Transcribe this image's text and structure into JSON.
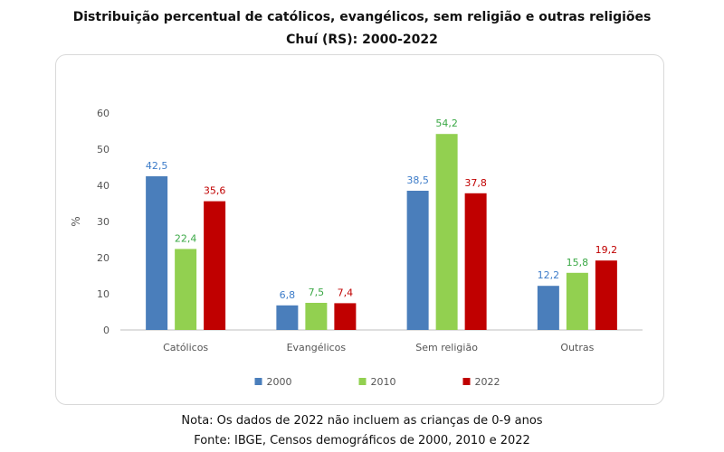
{
  "title_line1": "Distribuição percentual de católicos, evangélicos, sem religião e outras religiões",
  "title_line2": "Chuí (RS): 2000-2022",
  "note": "Nota: Os dados de 2022 não incluem as crianças de 0-9 anos",
  "source": "Fonte: IBGE, Censos demográficos de 2000, 2010 e 2022",
  "chart_data": {
    "type": "bar",
    "title": "Distribuição percentual de católicos, evangélicos, sem religião e outras religiões",
    "subtitle": "Chuí (RS): 2000-2022",
    "ylabel": "%",
    "xlabel": "",
    "ylim": [
      0,
      60
    ],
    "yticks": [
      0,
      10,
      20,
      30,
      40,
      50,
      60
    ],
    "grid": false,
    "legend_position": "bottom",
    "categories": [
      "Católicos",
      "Evangélicos",
      "Sem religião",
      "Outras"
    ],
    "series": [
      {
        "name": "2000",
        "values": [
          42.5,
          6.8,
          38.5,
          12.2
        ],
        "labels": [
          "42,5",
          "6,8",
          "38,5",
          "12,2"
        ],
        "color": "#4a7ebb",
        "label_color": "#3d7cc9"
      },
      {
        "name": "2010",
        "values": [
          22.4,
          7.5,
          54.2,
          15.8
        ],
        "labels": [
          "22,4",
          "7,5",
          "54,2",
          "15,8"
        ],
        "color": "#92d050",
        "label_color": "#3aa845"
      },
      {
        "name": "2022",
        "values": [
          35.6,
          7.4,
          37.8,
          19.2
        ],
        "labels": [
          "35,6",
          "7,4",
          "37,8",
          "19,2"
        ],
        "color": "#c00000",
        "label_color": "#c00000"
      }
    ]
  }
}
